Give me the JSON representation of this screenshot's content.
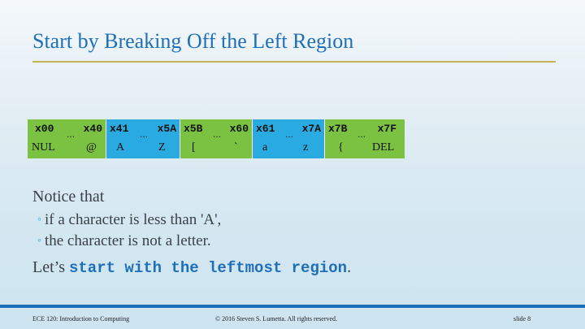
{
  "slide": {
    "title": "Start by Breaking Off the Left Region"
  },
  "ascii_table": {
    "segments": [
      {
        "start_code": "x00",
        "end_code": "x40",
        "start_char": "NUL",
        "end_char": "@",
        "ellipsis": "…",
        "color": "#7bc142"
      },
      {
        "start_code": "x41",
        "end_code": "x5A",
        "start_char": "A",
        "end_char": "Z",
        "ellipsis": "…",
        "color": "#29aae1"
      },
      {
        "start_code": "x5B",
        "end_code": "x60",
        "start_char": "[",
        "end_char": "`",
        "ellipsis": "…",
        "color": "#7bc142"
      },
      {
        "start_code": "x61",
        "end_code": "x7A",
        "start_char": "a",
        "end_char": "z",
        "ellipsis": "…",
        "color": "#29aae1"
      },
      {
        "start_code": "x7B",
        "end_code": "x7F",
        "start_char": "{",
        "end_char": "DEL",
        "ellipsis": "…",
        "color": "#7bc142"
      }
    ]
  },
  "content": {
    "intro": "Notice that",
    "bullet_glyph": "◦",
    "bullets": [
      "if a character is less than 'A',",
      "the character is not a letter."
    ],
    "lets_prefix": "Let’s ",
    "lets_highlight": "start with the leftmost region",
    "lets_suffix": "."
  },
  "footer": {
    "course": "ECE 120: Introduction to Computing",
    "copyright": "© 2016 Steven S. Lumetta.  All rights reserved.",
    "slide_number": "slide 8"
  }
}
